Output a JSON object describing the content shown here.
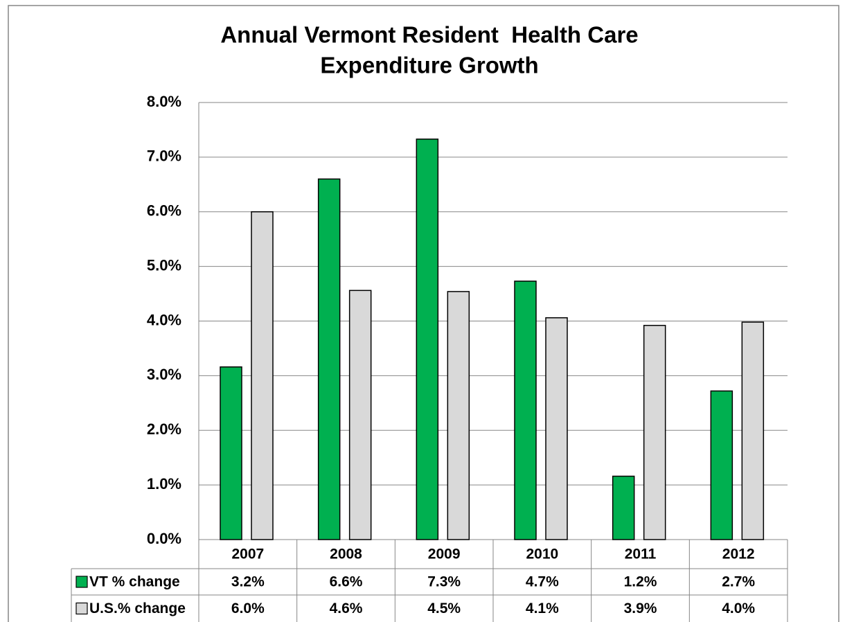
{
  "chart_data": {
    "type": "bar",
    "title": [
      "Annual Vermont Resident  Health Care",
      "Expenditure Growth"
    ],
    "categories": [
      "2007",
      "2008",
      "2009",
      "2010",
      "2011",
      "2012"
    ],
    "series": [
      {
        "name": "VT % change",
        "color": "#00b050",
        "values": [
          3.16,
          6.6,
          7.33,
          4.73,
          1.16,
          2.72
        ],
        "value_labels": [
          "3.2%",
          "6.6%",
          "7.3%",
          "4.7%",
          "1.2%",
          "2.7%"
        ]
      },
      {
        "name": "U.S.% change",
        "color": "#d9d9d9",
        "values": [
          6.0,
          4.56,
          4.54,
          4.06,
          3.92,
          3.98
        ],
        "value_labels": [
          "6.0%",
          "4.6%",
          "4.5%",
          "4.1%",
          "3.9%",
          "4.0%"
        ]
      }
    ],
    "ylim": [
      0,
      8
    ],
    "yticks": [
      {
        "value": 0,
        "label": "0.0%"
      },
      {
        "value": 1,
        "label": "1.0%"
      },
      {
        "value": 2,
        "label": "2.0%"
      },
      {
        "value": 3,
        "label": "3.0%"
      },
      {
        "value": 4,
        "label": "4.0%"
      },
      {
        "value": 5,
        "label": "5.0%"
      },
      {
        "value": 6,
        "label": "6.0%"
      },
      {
        "value": 7,
        "label": "7.0%"
      },
      {
        "value": 8,
        "label": "8.0%"
      }
    ],
    "grid": true
  }
}
